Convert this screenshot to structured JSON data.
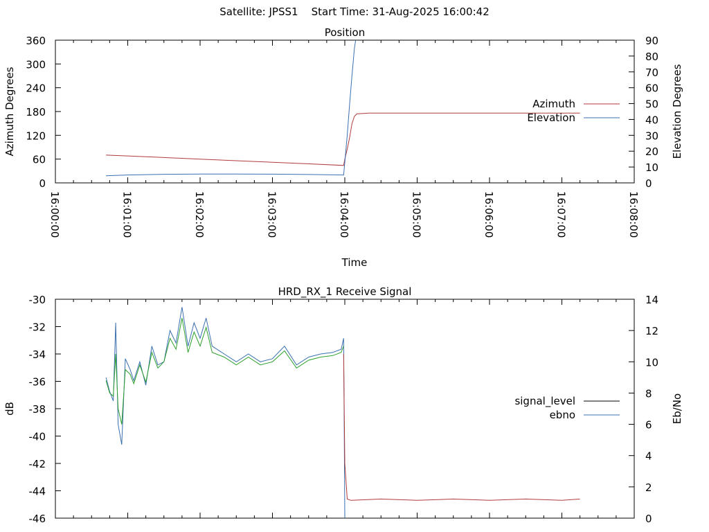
{
  "page_title": "Satellite: JPSS1    Start Time: 31-Aug-2025 16:00:42",
  "chart_data": [
    {
      "type": "line",
      "title": "Position",
      "xlabel": "Time",
      "ylabel_left": "Azimuth Degrees",
      "ylabel_right": "Elevation Degrees",
      "x_ticks": [
        "16:00:00",
        "16:01:00",
        "16:02:00",
        "16:03:00",
        "16:04:00",
        "16:05:00",
        "16:06:00",
        "16:07:00",
        "16:08:00"
      ],
      "xlim_seconds": [
        0,
        480
      ],
      "ylim_left": [
        0,
        360
      ],
      "yticks_left": [
        0,
        60,
        120,
        180,
        240,
        300,
        360
      ],
      "ylim_right": [
        0,
        90
      ],
      "yticks_right": [
        0,
        10,
        20,
        30,
        40,
        50,
        60,
        70,
        80,
        90
      ],
      "legend_position": "right",
      "grid": false,
      "series": [
        {
          "name": "Azimuth",
          "axis": "left",
          "color": "#b03a3a",
          "x": [
            "16:00:42",
            "16:01:00",
            "16:01:30",
            "16:02:00",
            "16:02:30",
            "16:03:00",
            "16:03:30",
            "16:03:59",
            "16:04:00",
            "16:04:02",
            "16:04:04",
            "16:04:06",
            "16:04:08",
            "16:04:10",
            "16:04:20",
            "16:05:00",
            "16:06:00",
            "16:07:00",
            "16:07:15"
          ],
          "y": [
            70,
            68,
            64,
            60,
            56,
            52,
            48,
            44,
            60,
            85,
            115,
            150,
            168,
            174,
            176,
            176,
            176,
            176,
            176
          ]
        },
        {
          "name": "Elevation",
          "axis": "right",
          "color": "#3a6fb0",
          "x": [
            "16:00:42",
            "16:01:00",
            "16:01:30",
            "16:02:00",
            "16:02:30",
            "16:03:00",
            "16:03:30",
            "16:03:59",
            "16:04:00",
            "16:04:02",
            "16:04:04",
            "16:04:06",
            "16:04:08",
            "16:04:09"
          ],
          "y": [
            4.5,
            5.0,
            5.4,
            5.6,
            5.6,
            5.5,
            5.3,
            5.0,
            13,
            30,
            50,
            68,
            85,
            90
          ]
        }
      ]
    },
    {
      "type": "line",
      "title": "HRD_RX_1 Receive Signal",
      "xlabel": "",
      "ylabel_left": "dB",
      "ylabel_right": "Eb/No",
      "xlim_seconds": [
        0,
        480
      ],
      "ylim_left": [
        -46,
        -30
      ],
      "yticks_left": [
        -46,
        -44,
        -42,
        -40,
        -38,
        -36,
        -34,
        -32,
        -30
      ],
      "ylim_right": [
        0,
        14
      ],
      "yticks_right": [
        0,
        2,
        4,
        6,
        8,
        10,
        12,
        14
      ],
      "legend_position": "right",
      "grid": false,
      "legend": [
        {
          "name": "signal_level",
          "color": "#000000"
        },
        {
          "name": "ebno",
          "color": "#3a6fb0"
        }
      ],
      "series": [
        {
          "name": "ebno",
          "axis": "right",
          "color": "#3a6fb0",
          "x": [
            "16:00:42",
            "16:00:45",
            "16:00:48",
            "16:00:50",
            "16:00:52",
            "16:00:55",
            "16:00:58",
            "16:01:02",
            "16:01:05",
            "16:01:10",
            "16:01:15",
            "16:01:20",
            "16:01:25",
            "16:01:30",
            "16:01:35",
            "16:01:40",
            "16:01:45",
            "16:01:50",
            "16:01:55",
            "16:02:00",
            "16:02:05",
            "16:02:10",
            "16:02:20",
            "16:02:30",
            "16:02:40",
            "16:02:50",
            "16:03:00",
            "16:03:10",
            "16:03:20",
            "16:03:30",
            "16:03:40",
            "16:03:50",
            "16:03:57",
            "16:03:59",
            "16:04:00"
          ],
          "y": [
            9.0,
            8.1,
            7.5,
            12.5,
            6.0,
            4.7,
            10.2,
            9.5,
            8.8,
            10.0,
            8.5,
            11.0,
            9.8,
            10.0,
            12.0,
            11.2,
            13.5,
            11.0,
            12.5,
            11.5,
            12.8,
            11.0,
            10.5,
            10.0,
            10.5,
            10.0,
            10.2,
            11.0,
            9.8,
            10.3,
            10.5,
            10.6,
            10.8,
            11.5,
            0
          ]
        },
        {
          "name": "",
          "axis": "right",
          "color": "#2ca02c",
          "x": [
            "16:00:42",
            "16:00:45",
            "16:00:48",
            "16:00:50",
            "16:00:52",
            "16:00:55",
            "16:00:58",
            "16:01:02",
            "16:01:05",
            "16:01:10",
            "16:01:15",
            "16:01:20",
            "16:01:25",
            "16:01:30",
            "16:01:35",
            "16:01:40",
            "16:01:45",
            "16:01:50",
            "16:01:55",
            "16:02:00",
            "16:02:05",
            "16:02:10",
            "16:02:20",
            "16:02:30",
            "16:02:40",
            "16:02:50",
            "16:03:00",
            "16:03:10",
            "16:03:20",
            "16:03:30",
            "16:03:40",
            "16:03:50",
            "16:03:57",
            "16:03:59"
          ],
          "y": [
            8.8,
            8.0,
            7.8,
            10.5,
            7.0,
            6.0,
            9.5,
            9.2,
            8.6,
            9.8,
            8.7,
            10.6,
            9.6,
            10.0,
            11.5,
            10.8,
            12.8,
            10.6,
            11.9,
            11.0,
            12.2,
            10.6,
            10.3,
            9.8,
            10.3,
            9.8,
            10.0,
            10.7,
            9.6,
            10.1,
            10.3,
            10.4,
            10.6,
            11.0
          ]
        },
        {
          "name": "",
          "axis": "left",
          "color": "#b03a3a",
          "x": [
            "16:03:59",
            "16:04:00",
            "16:04:02",
            "16:04:05",
            "16:04:30",
            "16:05:00",
            "16:05:30",
            "16:06:00",
            "16:06:30",
            "16:07:00",
            "16:07:15"
          ],
          "y": [
            -34.0,
            -42.0,
            -44.6,
            -44.7,
            -44.6,
            -44.7,
            -44.6,
            -44.7,
            -44.6,
            -44.7,
            -44.6
          ]
        }
      ]
    }
  ]
}
